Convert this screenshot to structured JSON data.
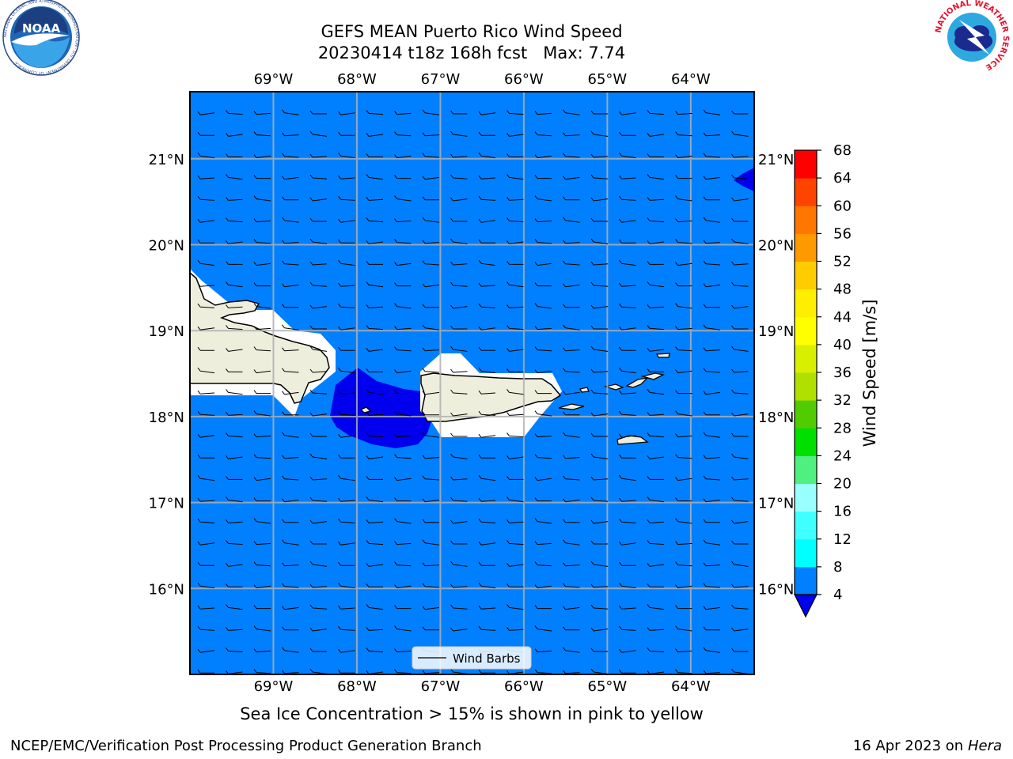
{
  "title": {
    "line1": "GEFS MEAN Puerto Rico Wind Speed",
    "line2": "20230414 t18z 168h fcst   Max: 7.74"
  },
  "note": "Sea Ice Concentration > 15% is shown in pink to yellow",
  "footer": {
    "left": "NCEP/EMC/Verification Post Processing Product Generation Branch",
    "right_date": "16 Apr 2023 on ",
    "right_host": "Hera"
  },
  "logos": {
    "left": "NOAA",
    "left_ring": "NATIONAL OCEANIC AND ATMOSPHERIC ADMINISTRATION · U.S. DEPARTMENT OF COMMERCE",
    "right_ring": "NATIONAL WEATHER SERVICE"
  },
  "map": {
    "lon_range": [
      -70.0,
      -63.24
    ],
    "lat_range": [
      15.0,
      21.78
    ],
    "lon_ticks": [
      -69,
      -68,
      -67,
      -66,
      -65,
      -64
    ],
    "lon_labels": [
      "69°W",
      "68°W",
      "67°W",
      "66°W",
      "65°W",
      "64°W"
    ],
    "lat_ticks": [
      16,
      17,
      18,
      19,
      20,
      21
    ],
    "lat_labels": [
      "16°N",
      "17°N",
      "18°N",
      "19°N",
      "20°N",
      "21°N"
    ],
    "background_speed_color": "#0080ff",
    "low_speed_color": "#0000ee",
    "land_color": "#eeeedd",
    "gridlines": true,
    "legend_label": "Wind Barbs",
    "legend_placement": "bottom-center"
  },
  "colorbar": {
    "label": "Wind Speed [m/s]",
    "ticks": [
      4,
      8,
      12,
      16,
      20,
      24,
      28,
      32,
      36,
      40,
      44,
      48,
      52,
      56,
      60,
      64,
      68
    ],
    "colors": [
      "#0080ff",
      "#00ffff",
      "#40ffff",
      "#99ffff",
      "#50f080",
      "#00e000",
      "#50cc00",
      "#b0e000",
      "#d8f000",
      "#ffff00",
      "#ffee00",
      "#ffcc00",
      "#ff9900",
      "#ff7700",
      "#ff4400",
      "#ff0000"
    ],
    "under_color": "#0000ee"
  }
}
